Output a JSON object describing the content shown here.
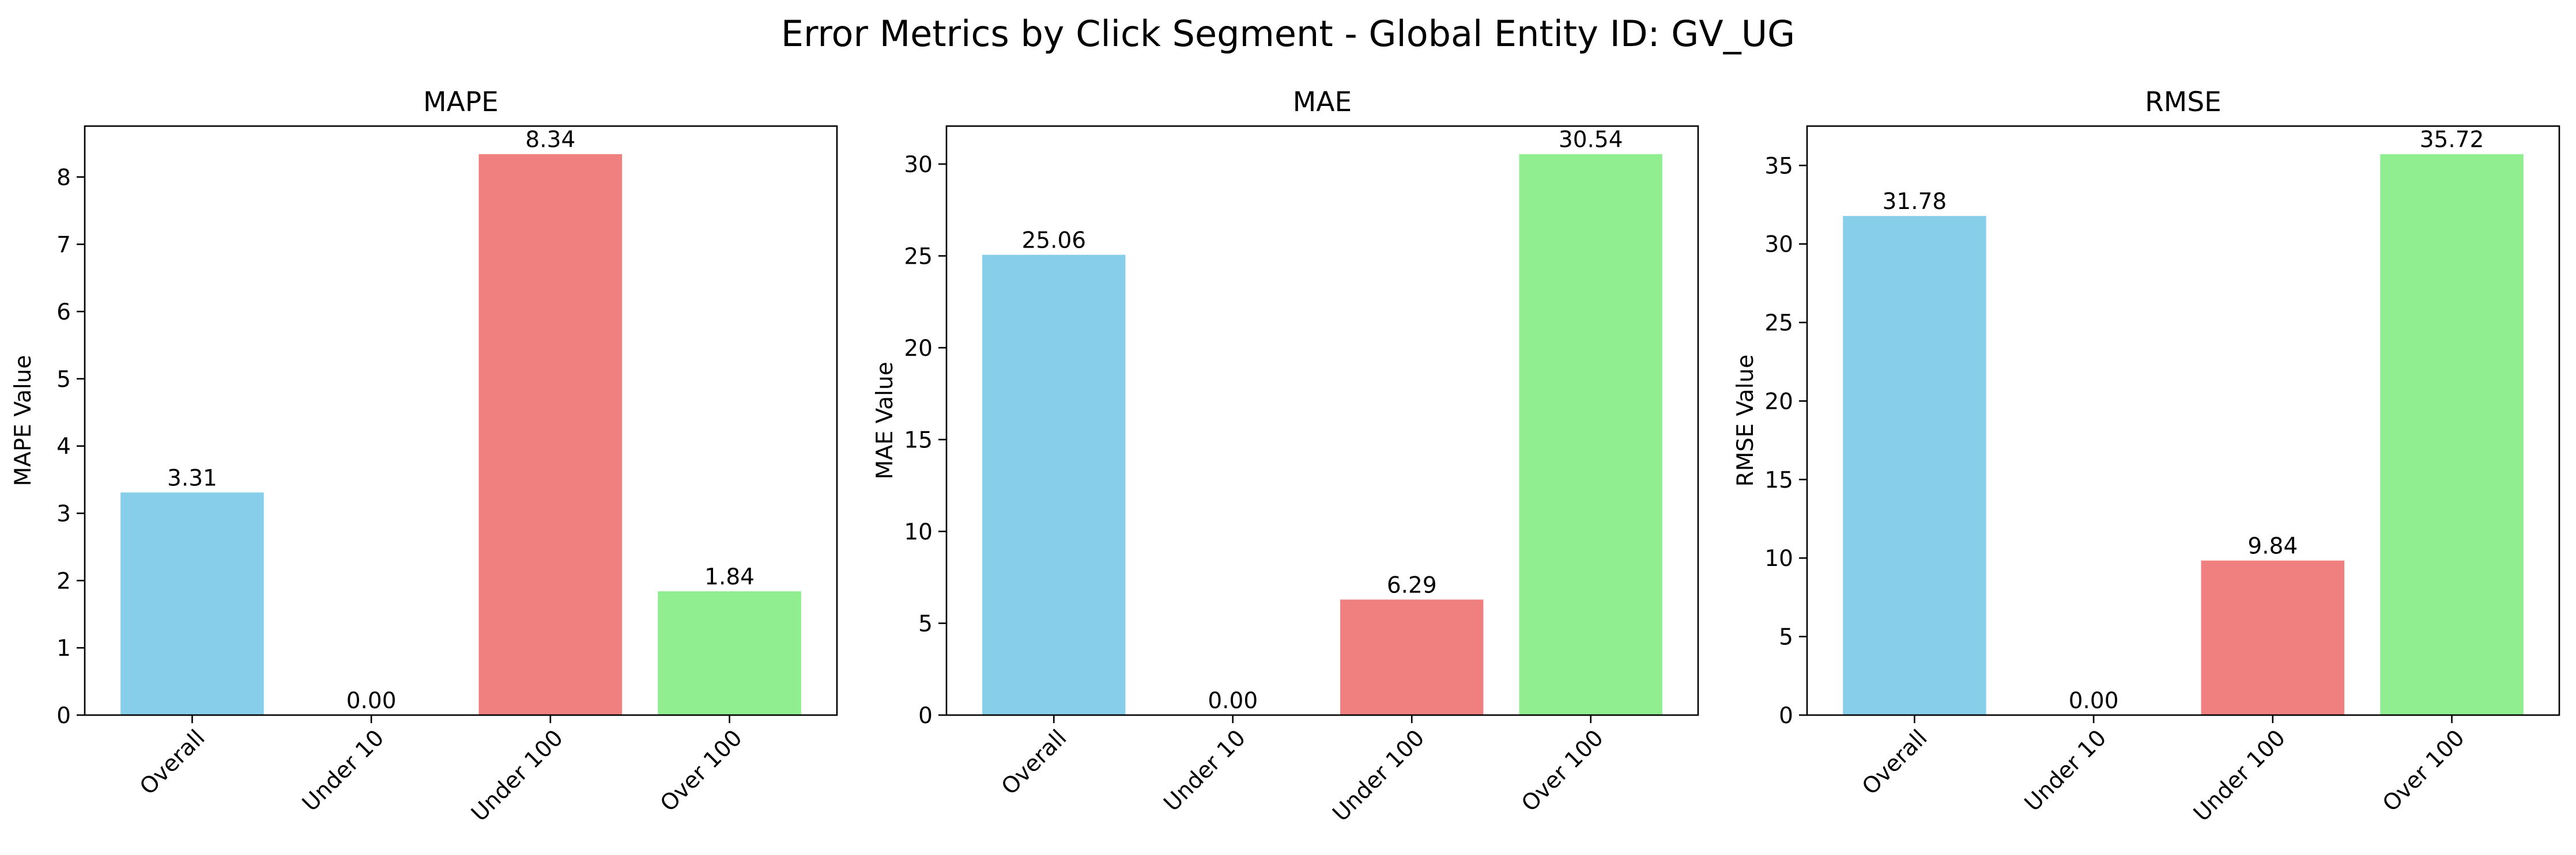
{
  "title": "Error Metrics by Click Segment - Global Entity ID: GV_UG",
  "colors": {
    "bars": [
      "#87CEEB",
      "#87CEEB",
      "#F08080",
      "#90EE90"
    ],
    "axis": "#000000",
    "background": "#ffffff"
  },
  "chart_data": [
    {
      "type": "bar",
      "title": "MAPE",
      "xlabel": "",
      "ylabel": "MAPE Value",
      "categories": [
        "Overall",
        "Under 10",
        "Under 100",
        "Over 100"
      ],
      "values": [
        3.31,
        0.0,
        8.34,
        1.84
      ],
      "value_labels": [
        "3.31",
        "0.00",
        "8.34",
        "1.84"
      ],
      "ylim": [
        0,
        8.757
      ],
      "yticks": [
        0,
        1,
        2,
        3,
        4,
        5,
        6,
        7,
        8
      ],
      "ytick_labels": [
        "0",
        "1",
        "2",
        "3",
        "4",
        "5",
        "6",
        "7",
        "8"
      ],
      "grid": false
    },
    {
      "type": "bar",
      "title": "MAE",
      "xlabel": "",
      "ylabel": "MAE Value",
      "categories": [
        "Overall",
        "Under 10",
        "Under 100",
        "Over 100"
      ],
      "values": [
        25.06,
        0.0,
        6.29,
        30.54
      ],
      "value_labels": [
        "25.06",
        "0.00",
        "6.29",
        "30.54"
      ],
      "ylim": [
        0,
        32.067
      ],
      "yticks": [
        0,
        5,
        10,
        15,
        20,
        25,
        30
      ],
      "ytick_labels": [
        "0",
        "5",
        "10",
        "15",
        "20",
        "25",
        "30"
      ],
      "grid": false
    },
    {
      "type": "bar",
      "title": "RMSE",
      "xlabel": "",
      "ylabel": "RMSE Value",
      "categories": [
        "Overall",
        "Under 10",
        "Under 100",
        "Over 100"
      ],
      "values": [
        31.78,
        0.0,
        9.84,
        35.72
      ],
      "value_labels": [
        "31.78",
        "0.00",
        "9.84",
        "35.72"
      ],
      "ylim": [
        0,
        37.506
      ],
      "yticks": [
        0,
        5,
        10,
        15,
        20,
        25,
        30,
        35
      ],
      "ytick_labels": [
        "0",
        "5",
        "10",
        "15",
        "20",
        "25",
        "30",
        "35"
      ],
      "grid": false
    }
  ]
}
